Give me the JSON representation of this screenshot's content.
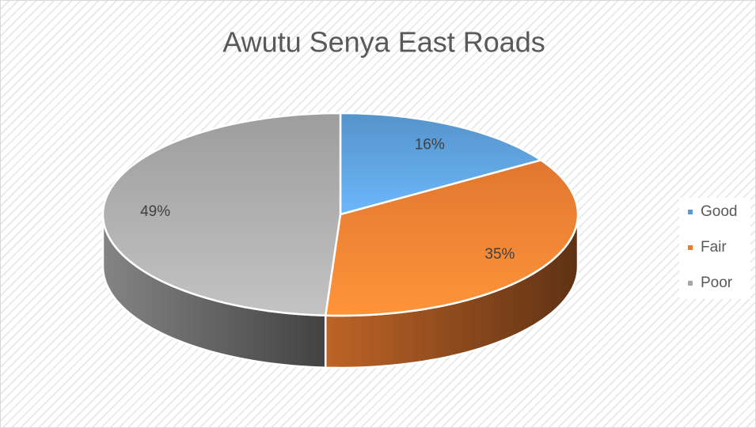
{
  "chart_data": {
    "type": "pie",
    "title": "Awutu Senya East Roads",
    "categories": [
      "Good",
      "Fair",
      "Poor"
    ],
    "values": [
      16,
      35,
      49
    ],
    "value_labels": [
      "16%",
      "35%",
      "49%"
    ],
    "colors": [
      "#5b9bd5",
      "#ed7d31",
      "#a5a5a5"
    ],
    "legend": "right"
  }
}
